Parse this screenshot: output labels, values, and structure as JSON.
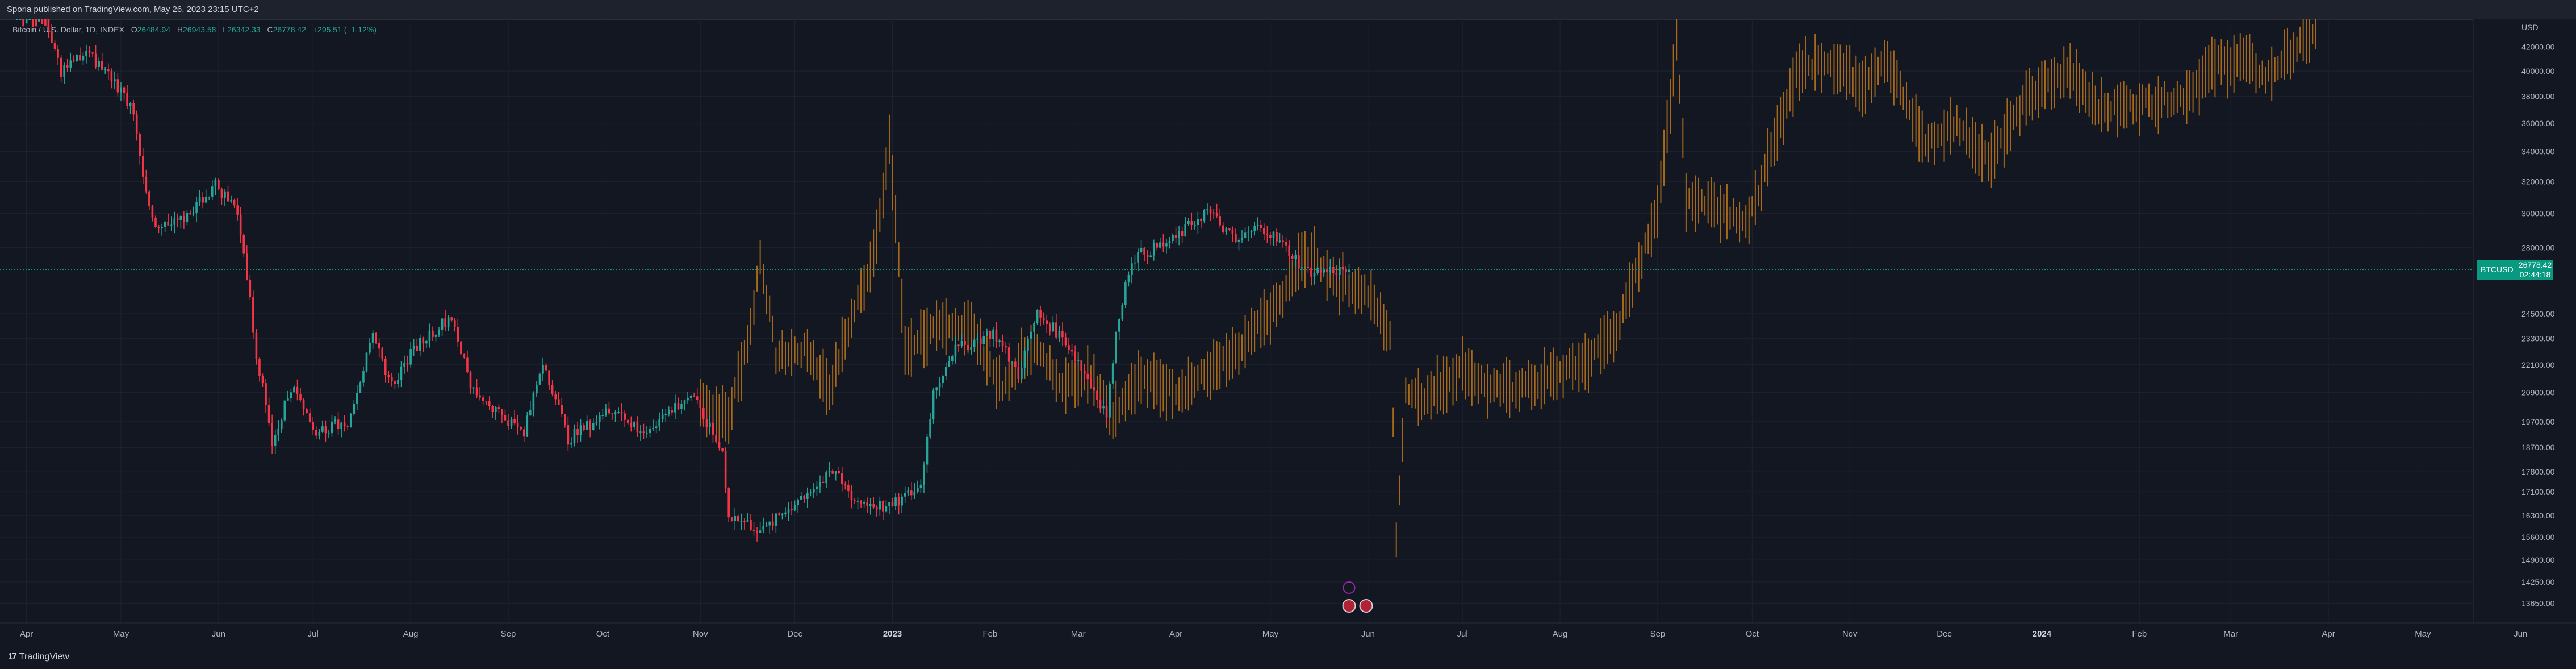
{
  "header": {
    "publisher_line": "Sporia published on TradingView.com, May 26, 2023 23:15 UTC+2"
  },
  "legend": {
    "symbol": "Bitcoin / U.S. Dollar, 1D, INDEX",
    "open_key": "O",
    "open": "26484.94",
    "high_key": "H",
    "high": "26943.58",
    "low_key": "L",
    "low": "26342.33",
    "close_key": "C",
    "close": "26778.42",
    "change": "+295.51 (+1.12%)"
  },
  "price_scale": {
    "currency": "USD",
    "ticks": [
      "42000.00",
      "40000.00",
      "38000.00",
      "36000.00",
      "34000.00",
      "32000.00",
      "30000.00",
      "28000.00",
      "24500.00",
      "23300.00",
      "22100.00",
      "20900.00",
      "19700.00",
      "18700.00",
      "17800.00",
      "17100.00",
      "16300.00",
      "15600.00",
      "14900.00",
      "14250.00",
      "13650.00"
    ]
  },
  "last_price": {
    "symbol": "BTCUSD",
    "price": "26778.42",
    "countdown": "02:44:18"
  },
  "time_axis": {
    "labels": [
      "Apr",
      "May",
      "Jun",
      "Jul",
      "Aug",
      "Sep",
      "Oct",
      "Nov",
      "Dec",
      "2023",
      "Feb",
      "Mar",
      "Apr",
      "May",
      "Jun",
      "Jul",
      "Aug",
      "Sep",
      "Oct",
      "Nov",
      "Dec",
      "2024",
      "Feb",
      "Mar",
      "Apr",
      "May",
      "Jun"
    ],
    "bold_labels": [
      "2023",
      "2024"
    ]
  },
  "footer": {
    "brand": "TradingView"
  },
  "colors": {
    "background": "#131722",
    "up_candle": "#26a69a",
    "down_candle": "#f23645",
    "ghost_bars": "#a86a1a",
    "last_price_badge": "#089981"
  },
  "chart_data": {
    "type": "candlestick",
    "title": "Bitcoin / U.S. Dollar, 1D, INDEX",
    "y_scale": "log",
    "ylim": [
      13300,
      43500
    ],
    "series": [
      {
        "name": "Bitcoin / U.S. Dollar",
        "style": "candles",
        "anchors": [
          [
            "2022-03-29",
            47000
          ],
          [
            "2022-04-05",
            45500
          ],
          [
            "2022-04-12",
            40000
          ],
          [
            "2022-04-20",
            41500
          ],
          [
            "2022-04-28",
            39500
          ],
          [
            "2022-05-05",
            37000
          ],
          [
            "2022-05-09",
            31000
          ],
          [
            "2022-05-12",
            29000
          ],
          [
            "2022-05-20",
            29500
          ],
          [
            "2022-05-31",
            31800
          ],
          [
            "2022-06-07",
            30200
          ],
          [
            "2022-06-13",
            22500
          ],
          [
            "2022-06-18",
            19000
          ],
          [
            "2022-06-25",
            21300
          ],
          [
            "2022-07-01",
            19300
          ],
          [
            "2022-07-12",
            19700
          ],
          [
            "2022-07-20",
            23300
          ],
          [
            "2022-07-26",
            21200
          ],
          [
            "2022-08-03",
            23000
          ],
          [
            "2022-08-14",
            24400
          ],
          [
            "2022-08-20",
            21100
          ],
          [
            "2022-09-06",
            19200
          ],
          [
            "2022-09-12",
            22300
          ],
          [
            "2022-09-20",
            19000
          ],
          [
            "2022-10-05",
            20300
          ],
          [
            "2022-10-13",
            19200
          ],
          [
            "2022-10-29",
            20800
          ],
          [
            "2022-11-08",
            18500
          ],
          [
            "2022-11-10",
            16300
          ],
          [
            "2022-11-21",
            15800
          ],
          [
            "2022-12-05",
            17100
          ],
          [
            "2022-12-14",
            17800
          ],
          [
            "2022-12-20",
            16800
          ],
          [
            "2022-12-31",
            16550
          ],
          [
            "2023-01-10",
            17300
          ],
          [
            "2023-01-14",
            20900
          ],
          [
            "2023-01-20",
            22700
          ],
          [
            "2023-02-02",
            23600
          ],
          [
            "2023-02-10",
            21700
          ],
          [
            "2023-02-16",
            24500
          ],
          [
            "2023-02-25",
            23200
          ],
          [
            "2023-03-10",
            20000
          ],
          [
            "2023-03-14",
            24500
          ],
          [
            "2023-03-18",
            27400
          ],
          [
            "2023-03-31",
            28400
          ],
          [
            "2023-04-11",
            30200
          ],
          [
            "2023-04-20",
            28300
          ],
          [
            "2023-04-28",
            29300
          ],
          [
            "2023-05-08",
            27600
          ],
          [
            "2023-05-12",
            26700
          ],
          [
            "2023-05-26",
            26778.42
          ]
        ]
      },
      {
        "name": "Overlay",
        "style": "ohlc_bars",
        "anchors": [
          [
            "2022-11-01",
            20500
          ],
          [
            "2022-11-10",
            19800
          ],
          [
            "2022-11-17",
            23800
          ],
          [
            "2022-11-20",
            27500
          ],
          [
            "2022-11-25",
            22500
          ],
          [
            "2022-12-05",
            22800
          ],
          [
            "2022-12-12",
            21000
          ],
          [
            "2022-12-25",
            27000
          ],
          [
            "2022-12-29",
            31000
          ],
          [
            "2022-12-31",
            34500
          ],
          [
            "2023-01-05",
            22600
          ],
          [
            "2023-01-10",
            23500
          ],
          [
            "2023-01-25",
            24000
          ],
          [
            "2023-02-05",
            21000
          ],
          [
            "2023-02-14",
            23000
          ],
          [
            "2023-02-25",
            21200
          ],
          [
            "2023-03-05",
            21800
          ],
          [
            "2023-03-12",
            20000
          ],
          [
            "2023-03-20",
            21500
          ],
          [
            "2023-04-02",
            21000
          ],
          [
            "2023-04-20",
            22500
          ],
          [
            "2023-05-05",
            25300
          ],
          [
            "2023-05-12",
            27700
          ],
          [
            "2023-05-22",
            26300
          ],
          [
            "2023-06-01",
            25500
          ],
          [
            "2023-06-08",
            23500
          ],
          [
            "2023-06-10",
            15500
          ],
          [
            "2023-06-13",
            21000
          ],
          [
            "2023-06-20",
            20700
          ],
          [
            "2023-07-01",
            22000
          ],
          [
            "2023-07-10",
            21000
          ],
          [
            "2023-07-25",
            21300
          ],
          [
            "2023-08-10",
            22300
          ],
          [
            "2023-08-20",
            24000
          ],
          [
            "2023-08-28",
            28000
          ],
          [
            "2023-09-01",
            30500
          ],
          [
            "2023-09-05",
            37000
          ],
          [
            "2023-09-07",
            43000
          ],
          [
            "2023-09-10",
            31000
          ],
          [
            "2023-09-20",
            30500
          ],
          [
            "2023-09-30",
            29500
          ],
          [
            "2023-10-08",
            34500
          ],
          [
            "2023-10-15",
            40000
          ],
          [
            "2023-10-25",
            41000
          ],
          [
            "2023-11-05",
            39000
          ],
          [
            "2023-11-12",
            41000
          ],
          [
            "2023-11-25",
            34500
          ],
          [
            "2023-12-05",
            36000
          ],
          [
            "2023-12-15",
            33500
          ],
          [
            "2023-12-28",
            38000
          ],
          [
            "2024-01-10",
            40000
          ],
          [
            "2024-01-20",
            37000
          ],
          [
            "2024-02-01",
            37500
          ],
          [
            "2024-02-15",
            38000
          ],
          [
            "2024-02-25",
            40500
          ],
          [
            "2024-03-05",
            41000
          ],
          [
            "2024-03-12",
            39500
          ],
          [
            "2024-03-20",
            41500
          ],
          [
            "2024-03-28",
            43500
          ]
        ]
      }
    ],
    "last_value": 26778.42
  }
}
